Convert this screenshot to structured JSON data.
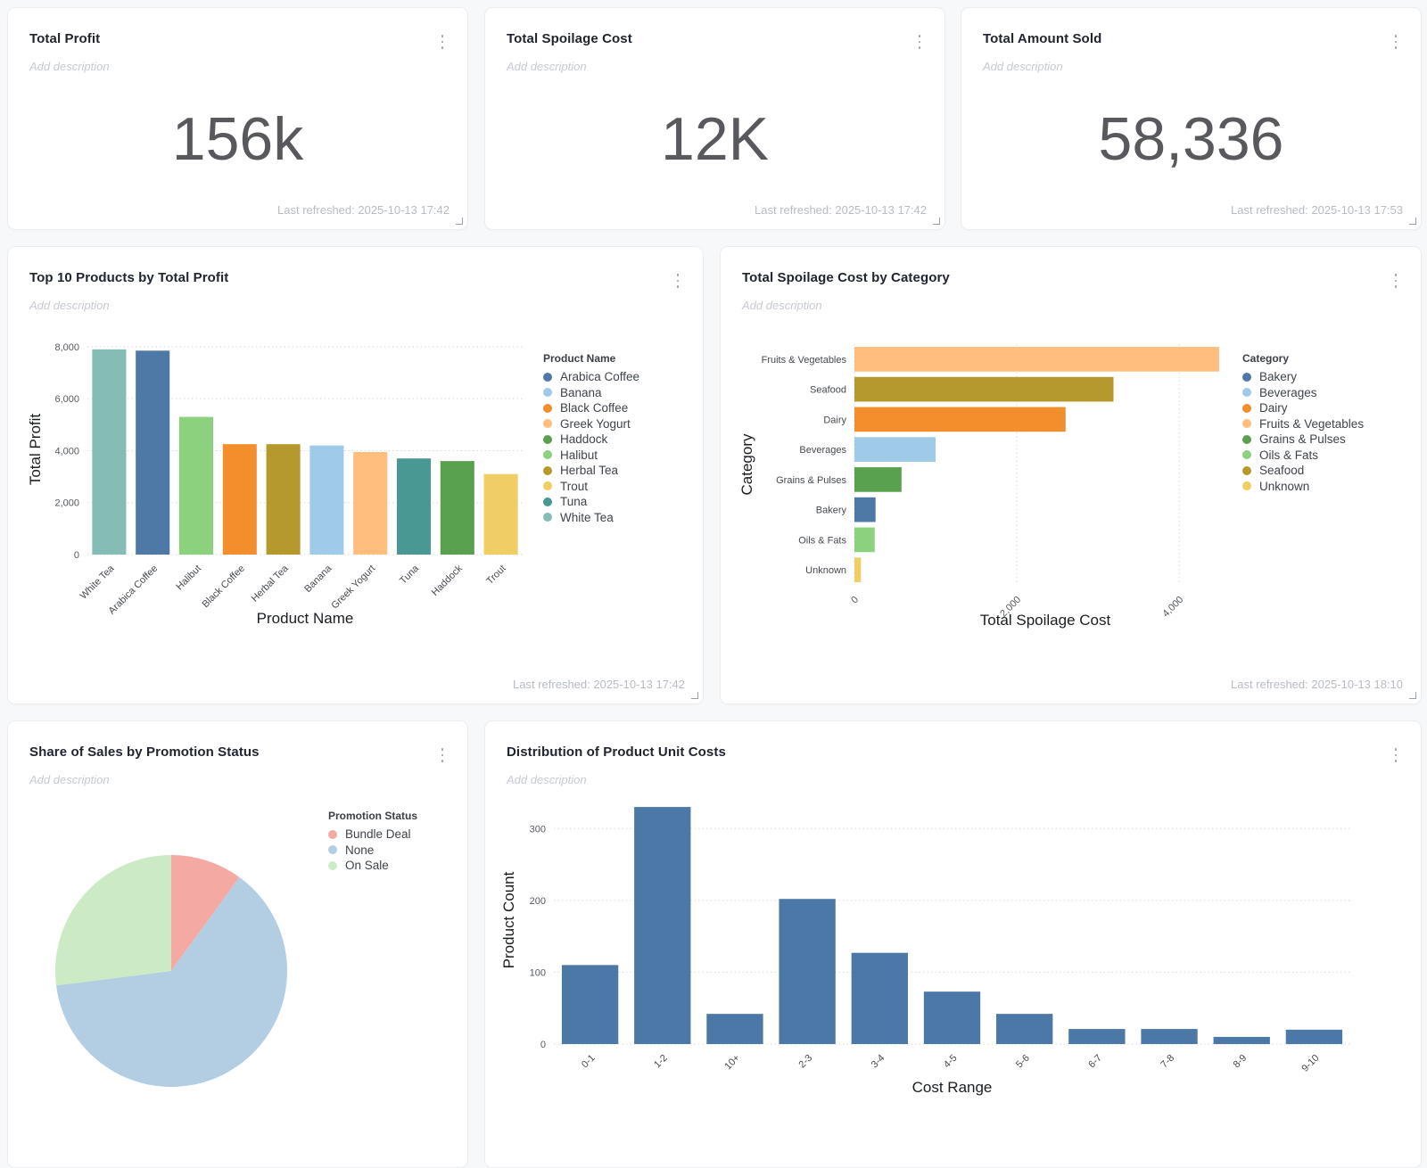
{
  "kpi_cards": [
    {
      "title": "Total Profit",
      "description_placeholder": "Add description",
      "value": "156k",
      "footer": "Last refreshed: 2025-10-13 17:42"
    },
    {
      "title": "Total Spoilage Cost",
      "description_placeholder": "Add description",
      "value": "12K",
      "footer": "Last refreshed: 2025-10-13 17:42"
    },
    {
      "title": "Total Amount Sold",
      "description_placeholder": "Add description",
      "value": "58,336",
      "footer": "Last refreshed: 2025-10-13 17:53"
    }
  ],
  "charts": {
    "top_products": {
      "title": "Top 10 Products by Total Profit",
      "description_placeholder": "Add description",
      "footer": "Last refreshed: 2025-10-13 17:42",
      "chart_data": {
        "type": "bar",
        "categories": [
          "White Tea",
          "Arabica Coffee",
          "Halibut",
          "Black Coffee",
          "Herbal Tea",
          "Banana",
          "Greek Yogurt",
          "Tuna",
          "Haddock",
          "Trout"
        ],
        "values": [
          7900,
          7850,
          5300,
          4250,
          4250,
          4200,
          3950,
          3700,
          3600,
          3100
        ],
        "bar_colors": [
          "#86bcb6",
          "#4e79a7",
          "#8cd17d",
          "#f28e2b",
          "#b6992d",
          "#a0cbe8",
          "#ffbe7d",
          "#499894",
          "#59a14f",
          "#f1ce63"
        ],
        "xlabel": "Product Name",
        "ylabel": "Total Profit",
        "yticks": [
          0,
          2000,
          4000,
          6000,
          8000
        ],
        "ylim": [
          0,
          8100
        ],
        "grid": "dotted-horizontal",
        "legend_position": "right",
        "legend_title": "Product Name",
        "legend": [
          {
            "label": "Arabica Coffee",
            "color": "#4e79a7"
          },
          {
            "label": "Banana",
            "color": "#a0cbe8"
          },
          {
            "label": "Black Coffee",
            "color": "#f28e2b"
          },
          {
            "label": "Greek Yogurt",
            "color": "#ffbe7d"
          },
          {
            "label": "Haddock",
            "color": "#59a14f"
          },
          {
            "label": "Halibut",
            "color": "#8cd17d"
          },
          {
            "label": "Herbal Tea",
            "color": "#b6992d"
          },
          {
            "label": "Trout",
            "color": "#f1ce63"
          },
          {
            "label": "Tuna",
            "color": "#499894"
          },
          {
            "label": "White Tea",
            "color": "#86bcb6"
          }
        ]
      }
    },
    "spoilage_by_category": {
      "title": "Total Spoilage Cost by Category",
      "description_placeholder": "Add description",
      "footer": "Last refreshed: 2025-10-13 18:10",
      "chart_data": {
        "type": "bar_horizontal",
        "categories": [
          "Fruits & Vegetables",
          "Seafood",
          "Dairy",
          "Beverages",
          "Grains & Pulses",
          "Bakery",
          "Oils & Fats",
          "Unknown"
        ],
        "values": [
          4490,
          3190,
          2600,
          1000,
          580,
          260,
          250,
          80
        ],
        "bar_colors": [
          "#ffbe7d",
          "#b6992d",
          "#f28e2b",
          "#a0cbe8",
          "#59a14f",
          "#4e79a7",
          "#8cd17d",
          "#f1ce63"
        ],
        "xlabel": "Total Spoilage Cost",
        "ylabel": "Category",
        "xticks": [
          0,
          2000,
          4000
        ],
        "xlim": [
          0,
          4700
        ],
        "grid": "dotted-vertical",
        "legend_position": "right",
        "legend_title": "Category",
        "legend": [
          {
            "label": "Bakery",
            "color": "#4e79a7"
          },
          {
            "label": "Beverages",
            "color": "#a0cbe8"
          },
          {
            "label": "Dairy",
            "color": "#f28e2b"
          },
          {
            "label": "Fruits & Vegetables",
            "color": "#ffbe7d"
          },
          {
            "label": "Grains & Pulses",
            "color": "#59a14f"
          },
          {
            "label": "Oils & Fats",
            "color": "#8cd17d"
          },
          {
            "label": "Seafood",
            "color": "#b6992d"
          },
          {
            "label": "Unknown",
            "color": "#f1ce63"
          }
        ]
      }
    },
    "promo_share": {
      "title": "Share of Sales by Promotion Status",
      "description_placeholder": "Add description",
      "chart_data": {
        "type": "pie",
        "labels": [
          "Bundle Deal",
          "None",
          "On Sale"
        ],
        "values": [
          10,
          63,
          27
        ],
        "colors": [
          "#f5a9a3",
          "#b3cde3",
          "#ccebc5"
        ],
        "start_angle": "top",
        "direction": "clockwise",
        "legend_position": "right",
        "legend_title": "Promotion Status",
        "legend": [
          {
            "label": "Bundle Deal",
            "color": "#f5a9a3"
          },
          {
            "label": "None",
            "color": "#b3cde3"
          },
          {
            "label": "On Sale",
            "color": "#ccebc5"
          }
        ]
      }
    },
    "unit_cost_dist": {
      "title": "Distribution of Product Unit Costs",
      "description_placeholder": "Add description",
      "chart_data": {
        "type": "bar",
        "categories": [
          "0-1",
          "1-2",
          "10+",
          "2-3",
          "3-4",
          "4-5",
          "5-6",
          "6-7",
          "7-8",
          "8-9",
          "9-10"
        ],
        "values": [
          110,
          330,
          42,
          202,
          127,
          73,
          42,
          21,
          21,
          10,
          20
        ],
        "bar_color": "#4c78a8",
        "xlabel": "Cost Range",
        "ylabel": "Product Count",
        "yticks": [
          0,
          100,
          200,
          300
        ],
        "ylim": [
          0,
          345
        ],
        "grid": "dotted-horizontal"
      }
    }
  },
  "colors": {
    "page_background": "#f7f8f9",
    "card_background": "#ffffff",
    "kpi_value_text": "#58595c",
    "gridline": "#d8dade",
    "histogram_bar": "#4c78a8"
  },
  "icons": {
    "kebab_menu": "vertical-ellipsis",
    "resize_corner": "bottom-right-corner-bracket"
  }
}
